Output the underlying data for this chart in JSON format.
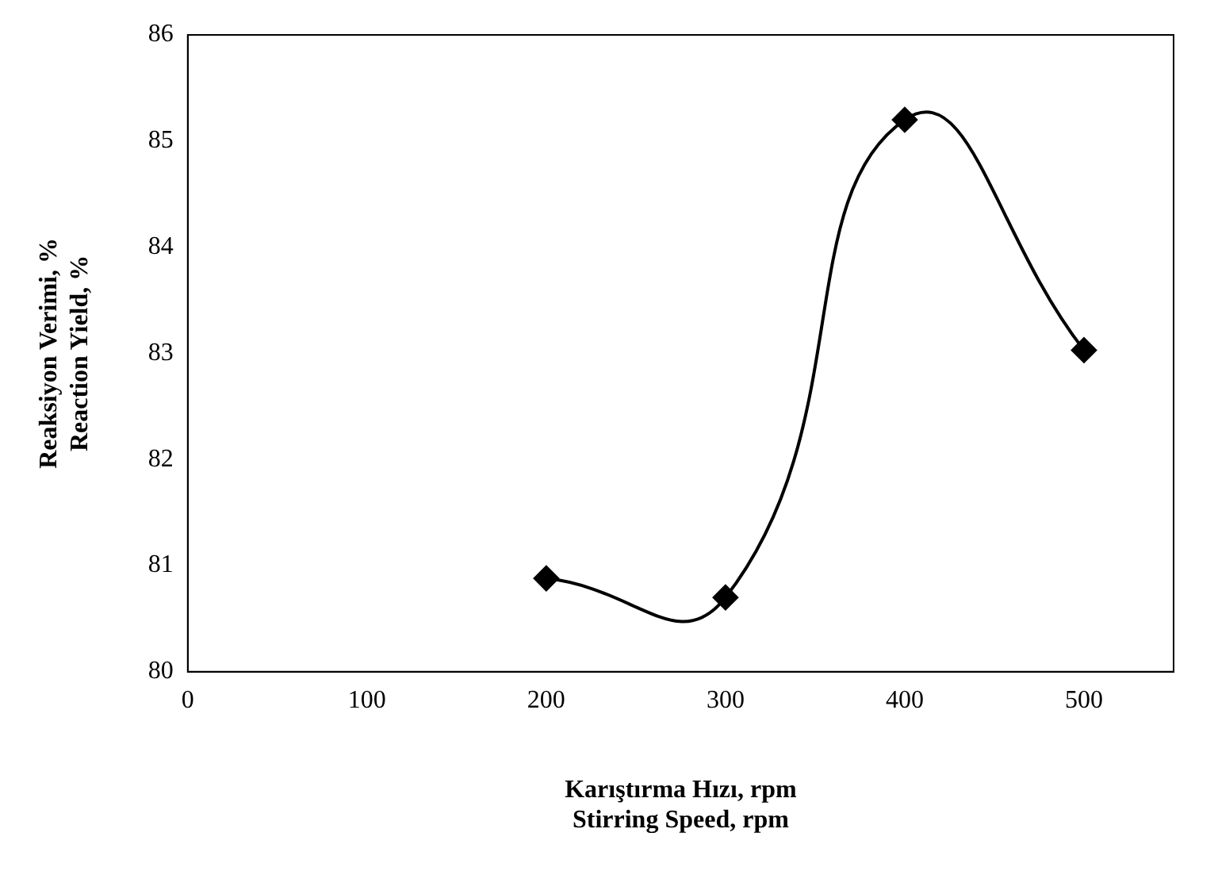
{
  "chart_data": {
    "type": "line",
    "xlabel": "Karıştırma Hızı, rpm\nStirring Speed, rpm",
    "ylabel": "Reaksiyon Verimi, %\nReaction Yield, %",
    "x": [
      200,
      300,
      400,
      500
    ],
    "series": [
      {
        "color": "#000000",
        "values": [
          80.88,
          80.7,
          85.2,
          83.03
        ]
      }
    ],
    "xlim": [
      0,
      550
    ],
    "xticks": [
      0,
      100,
      200,
      300,
      400,
      500
    ],
    "ylim": [
      80,
      86
    ],
    "yticks": [
      80,
      81,
      82,
      83,
      84,
      85,
      86
    ],
    "grid": false,
    "legend": false,
    "marker": "diamond",
    "line_style": "solid"
  }
}
